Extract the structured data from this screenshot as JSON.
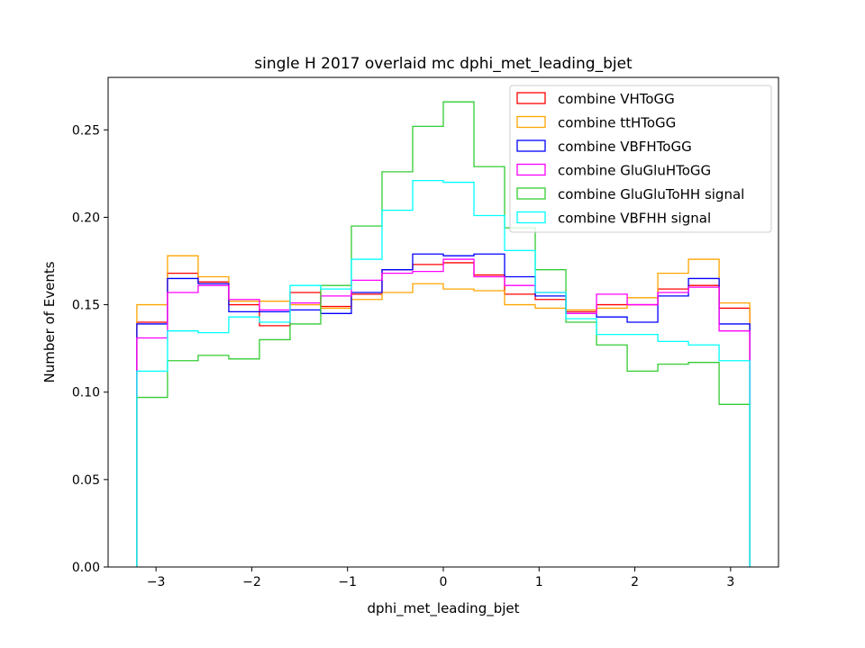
{
  "chart_data": {
    "type": "histogram",
    "title": "single H 2017 overlaid mc dphi_met_leading_bjet",
    "xlabel": "dphi_met_leading_bjet",
    "ylabel": "Number of Events",
    "xlim": [
      -3.5,
      3.5
    ],
    "ylim": [
      0.0,
      0.28
    ],
    "xticks": [
      -3,
      -2,
      -1,
      0,
      1,
      2,
      3
    ],
    "xtick_labels": [
      "−3",
      "−2",
      "−1",
      "0",
      "1",
      "2",
      "3"
    ],
    "yticks": [
      0.0,
      0.05,
      0.1,
      0.15,
      0.2,
      0.25
    ],
    "ytick_labels": [
      "0.00",
      "0.05",
      "0.10",
      "0.15",
      "0.20",
      "0.25"
    ],
    "grid": false,
    "legend_position": "top-right",
    "bin_edges": [
      -3.2,
      -2.88,
      -2.56,
      -2.24,
      -1.92,
      -1.6,
      -1.28,
      -0.96,
      -0.64,
      -0.32,
      0.0,
      0.32,
      0.64,
      0.96,
      1.28,
      1.6,
      1.92,
      2.24,
      2.56,
      2.88,
      3.2
    ],
    "series": [
      {
        "name": "combine VHToGG",
        "color": "#ff0000",
        "values": [
          0.14,
          0.168,
          0.163,
          0.15,
          0.138,
          0.157,
          0.149,
          0.156,
          0.17,
          0.173,
          0.174,
          0.167,
          0.156,
          0.153,
          0.146,
          0.15,
          0.15,
          0.159,
          0.161,
          0.148
        ]
      },
      {
        "name": "combine ttHToGG",
        "color": "#ffa500",
        "values": [
          0.15,
          0.178,
          0.166,
          0.152,
          0.152,
          0.15,
          0.148,
          0.153,
          0.157,
          0.162,
          0.159,
          0.158,
          0.15,
          0.148,
          0.147,
          0.148,
          0.154,
          0.168,
          0.176,
          0.151
        ]
      },
      {
        "name": "combine VBFHToGG",
        "color": "#0000ff",
        "values": [
          0.139,
          0.165,
          0.162,
          0.146,
          0.146,
          0.147,
          0.145,
          0.157,
          0.17,
          0.179,
          0.178,
          0.179,
          0.166,
          0.155,
          0.145,
          0.143,
          0.14,
          0.155,
          0.165,
          0.139
        ]
      },
      {
        "name": "combine GluGluHToGG",
        "color": "#ff00ff",
        "values": [
          0.131,
          0.157,
          0.161,
          0.153,
          0.147,
          0.151,
          0.155,
          0.164,
          0.168,
          0.169,
          0.176,
          0.166,
          0.161,
          0.157,
          0.145,
          0.156,
          0.15,
          0.157,
          0.16,
          0.135
        ]
      },
      {
        "name": "combine GluGluToHH signal",
        "color": "#33cc33",
        "values": [
          0.097,
          0.118,
          0.121,
          0.119,
          0.13,
          0.139,
          0.161,
          0.195,
          0.226,
          0.252,
          0.266,
          0.229,
          0.194,
          0.17,
          0.14,
          0.127,
          0.112,
          0.116,
          0.117,
          0.093
        ]
      },
      {
        "name": "combine VBFHH signal",
        "color": "#00ffff",
        "values": [
          0.112,
          0.135,
          0.134,
          0.143,
          0.14,
          0.161,
          0.159,
          0.176,
          0.204,
          0.221,
          0.22,
          0.201,
          0.181,
          0.157,
          0.142,
          0.133,
          0.133,
          0.129,
          0.127,
          0.118
        ]
      }
    ]
  }
}
